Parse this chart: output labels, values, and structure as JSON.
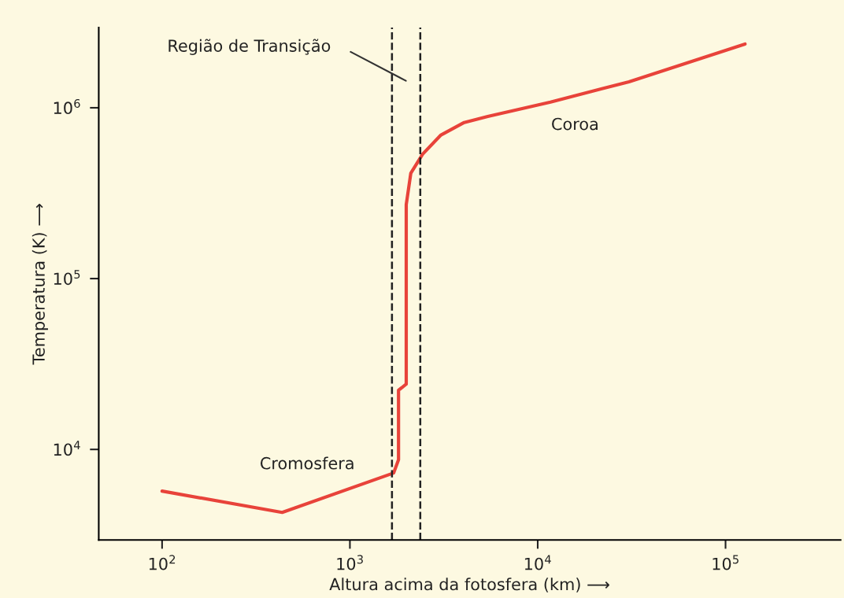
{
  "chart_data": {
    "type": "line",
    "xlabel": "Altura acima da fotosfera (km) ⟶",
    "ylabel": "Temperatura (K) ⟶",
    "log": "xy",
    "grid": false,
    "legend": false,
    "marker": "none",
    "line_style": "solid",
    "xlim": [
      46,
      410000
    ],
    "ylim": [
      2950,
      2950000
    ],
    "xticks": [
      {
        "value": 100,
        "label": "10$^{2}$"
      },
      {
        "value": 1000,
        "label": "10$^{3}$"
      },
      {
        "value": 10000,
        "label": "10$^{4}$"
      },
      {
        "value": 100000,
        "label": "10$^{5}$"
      }
    ],
    "yticks": [
      {
        "value": 10000,
        "label": "10$^{4}$"
      },
      {
        "value": 100000,
        "label": "10$^{5}$"
      },
      {
        "value": 1000000,
        "label": "10$^{6}$"
      }
    ],
    "x": [
      100,
      436,
      1710,
      1815,
      1815,
      1995,
      1995,
      2110,
      2440,
      3040,
      4060,
      5420,
      11700,
      30600,
      127000
    ],
    "series": [
      {
        "color": "#e8433a",
        "values": [
          5700,
          4280,
          7280,
          8700,
          22200,
          24100,
          271000,
          414000,
          535000,
          690000,
          820000,
          890000,
          1080000,
          1420000,
          2360000
        ]
      }
    ],
    "ref_lines": [
      {
        "axis": "x",
        "value": 1675,
        "color": "#222222",
        "line_style": "dashed"
      },
      {
        "axis": "x",
        "value": 2370,
        "color": "#222222",
        "line_style": "dashed"
      }
    ],
    "annotations": [
      "Região de Transição",
      "Coroa",
      "Cromosfera"
    ]
  }
}
